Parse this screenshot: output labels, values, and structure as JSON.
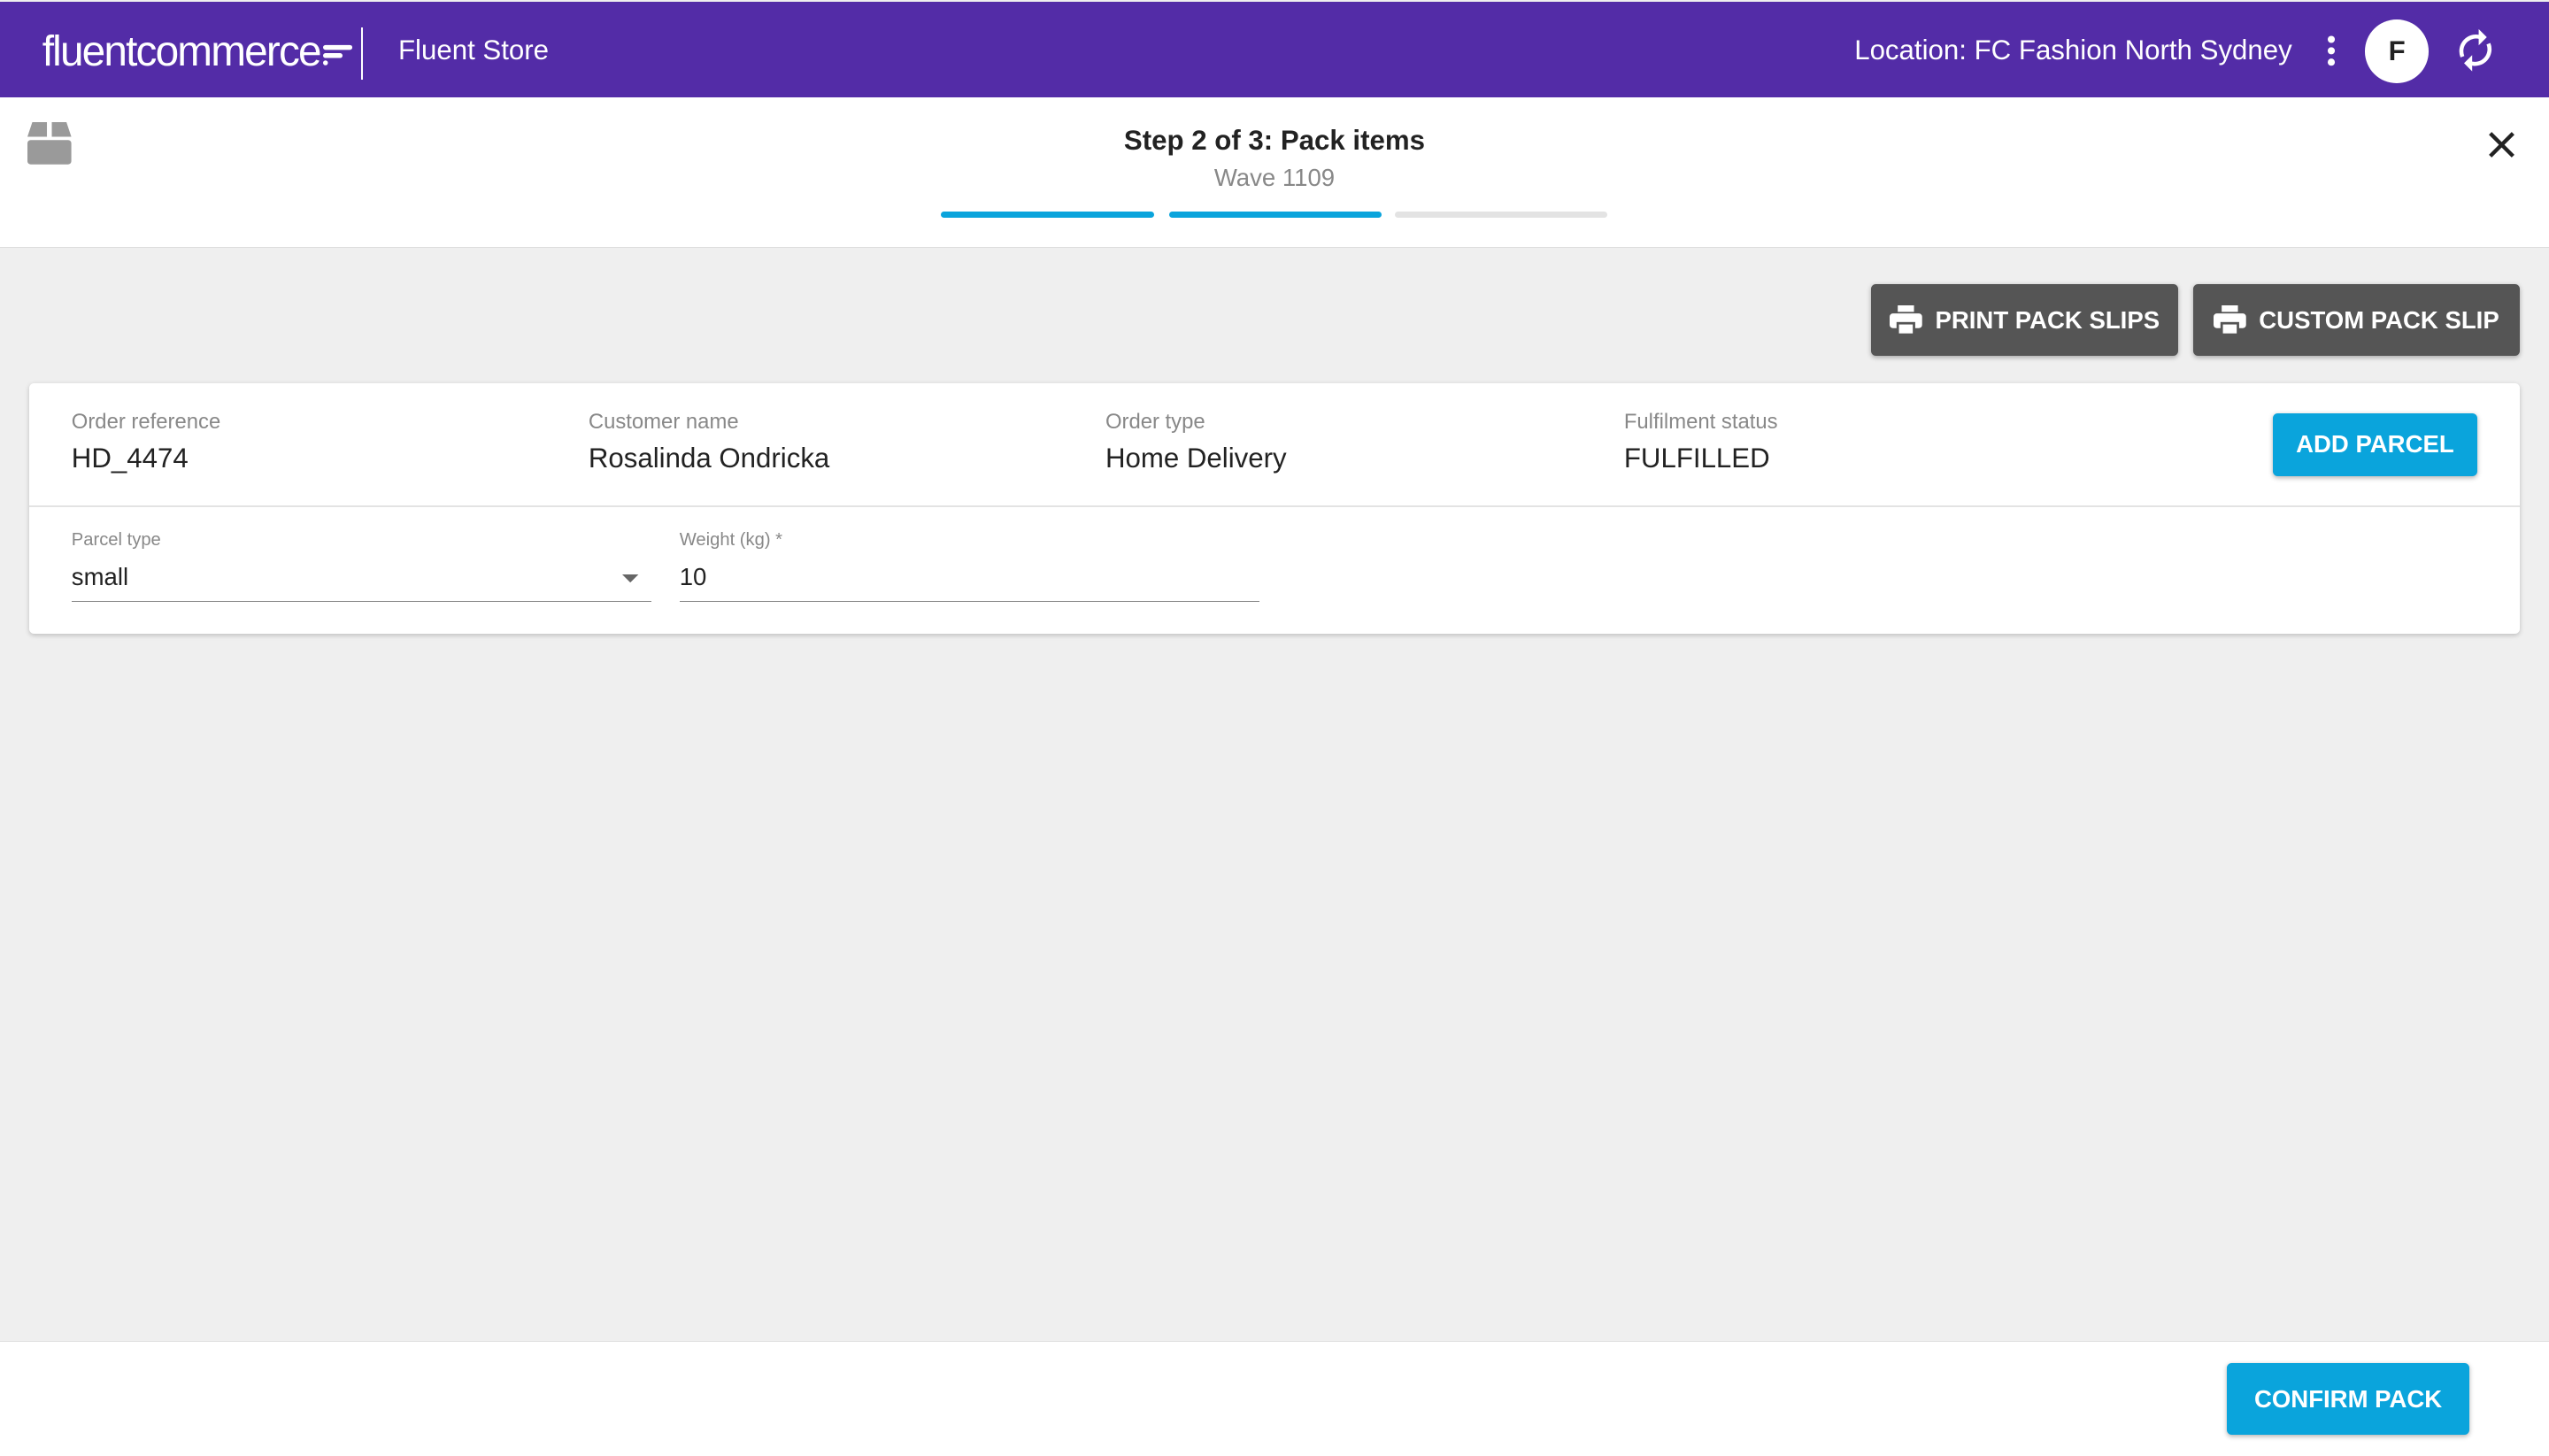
{
  "header": {
    "logo_text_bold": "fluent",
    "logo_text": "commerce",
    "app_name": "Fluent Store",
    "location": "Location: FC Fashion North Sydney",
    "avatar_initial": "F",
    "brand_color": "#532ca7"
  },
  "step": {
    "title": "Step 2 of 3: Pack items",
    "subtitle": "Wave 1109",
    "progress": [
      1,
      1,
      0
    ],
    "active_color": "#0aa4dc"
  },
  "actions": {
    "print_pack_slips": "PRINT PACK SLIPS",
    "custom_pack_slip": "CUSTOM PACK SLIP"
  },
  "order": {
    "fields": [
      {
        "label": "Order reference",
        "value": "HD_4474"
      },
      {
        "label": "Customer name",
        "value": "Rosalinda Ondricka"
      },
      {
        "label": "Order type",
        "value": "Home Delivery"
      },
      {
        "label": "Fulfilment status",
        "value": "FULFILLED"
      }
    ],
    "add_parcel": "ADD PARCEL",
    "parcel_type": {
      "label": "Parcel type",
      "value": "small"
    },
    "weight": {
      "label": "Weight (kg) *",
      "value": "10"
    }
  },
  "footer": {
    "confirm_pack": "CONFIRM PACK"
  }
}
